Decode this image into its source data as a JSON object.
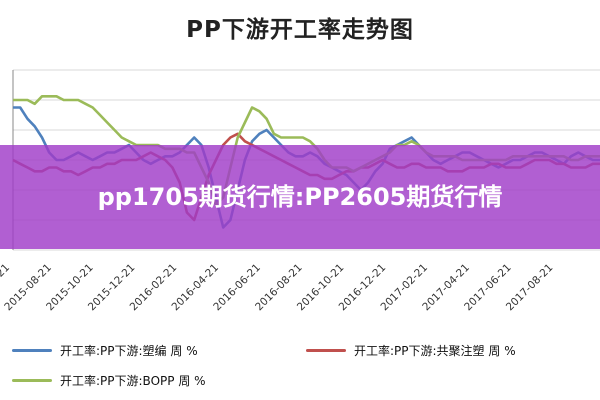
{
  "banner": {
    "text": "pp1705期货行情:PP2605期货行情"
  },
  "colors": {
    "banner_bg": "#9b45c8",
    "grid": "#d9d9d9",
    "axis": "#888888"
  },
  "chart_data": {
    "type": "line",
    "title": "PP下游开工率走势图",
    "xlabel": "",
    "ylabel": "",
    "grid": true,
    "legend_position": "bottom",
    "x_ticks": [
      "2015-06-21",
      "2015-08-21",
      "2015-10-21",
      "2015-12-21",
      "2016-02-21",
      "2016-04-21",
      "2016-06-21",
      "2016-08-21",
      "2016-10-21",
      "2016-12-21",
      "2017-02-21",
      "2017-04-21",
      "2017-06-21",
      "2017-08-21"
    ],
    "series": [
      {
        "name": "开工率:PP下游:塑编  周 %",
        "color": "#4f81bd",
        "values": [
          80,
          80,
          77,
          75,
          72,
          68,
          66,
          66,
          67,
          68,
          67,
          66,
          67,
          68,
          68,
          69,
          70,
          68,
          66,
          65,
          66,
          67,
          67,
          68,
          70,
          72,
          70,
          64,
          56,
          48,
          50,
          58,
          66,
          71,
          73,
          74,
          72,
          70,
          68,
          67,
          67,
          68,
          67,
          65,
          64,
          63,
          62,
          60,
          58,
          60,
          63,
          65,
          69,
          70,
          71,
          72,
          70,
          68,
          66,
          65,
          66,
          67,
          68,
          68,
          67,
          66,
          65,
          64,
          65,
          66,
          66,
          67,
          68,
          68,
          67,
          66,
          65,
          67,
          68,
          67,
          66,
          66
        ]
      },
      {
        "name": "开工率:PP下游:共聚注塑  周 %",
        "color": "#c0504d",
        "values": [
          66,
          65,
          64,
          63,
          63,
          64,
          64,
          63,
          63,
          62,
          63,
          64,
          64,
          65,
          65,
          66,
          66,
          66,
          67,
          68,
          67,
          66,
          64,
          60,
          52,
          50,
          56,
          62,
          66,
          70,
          72,
          73,
          71,
          70,
          69,
          68,
          67,
          66,
          65,
          64,
          63,
          62,
          62,
          61,
          61,
          62,
          63,
          63,
          64,
          64,
          65,
          66,
          65,
          64,
          64,
          65,
          65,
          64,
          64,
          64,
          63,
          63,
          63,
          64,
          64,
          64,
          65,
          65,
          64,
          64,
          64,
          65,
          66,
          66,
          66,
          65,
          65,
          64,
          64,
          64,
          65,
          65
        ]
      },
      {
        "name": "开工率:PP下游:BOPP  周 %",
        "color": "#9bbb59",
        "values": [
          82,
          82,
          82,
          81,
          83,
          83,
          83,
          82,
          82,
          82,
          81,
          80,
          78,
          76,
          74,
          72,
          71,
          70,
          70,
          70,
          70,
          69,
          69,
          69,
          68,
          68,
          64,
          60,
          54,
          56,
          64,
          72,
          76,
          80,
          79,
          77,
          73,
          72,
          72,
          72,
          72,
          71,
          69,
          66,
          64,
          64,
          64,
          63,
          64,
          65,
          66,
          67,
          68,
          70,
          70,
          71,
          70,
          68,
          67,
          67,
          67,
          67,
          66,
          66,
          66,
          66,
          66,
          66,
          66,
          67,
          67,
          67,
          67,
          67,
          67,
          67,
          67,
          66,
          66,
          67,
          67,
          67
        ]
      }
    ],
    "ylim": [
      42,
      90
    ]
  }
}
